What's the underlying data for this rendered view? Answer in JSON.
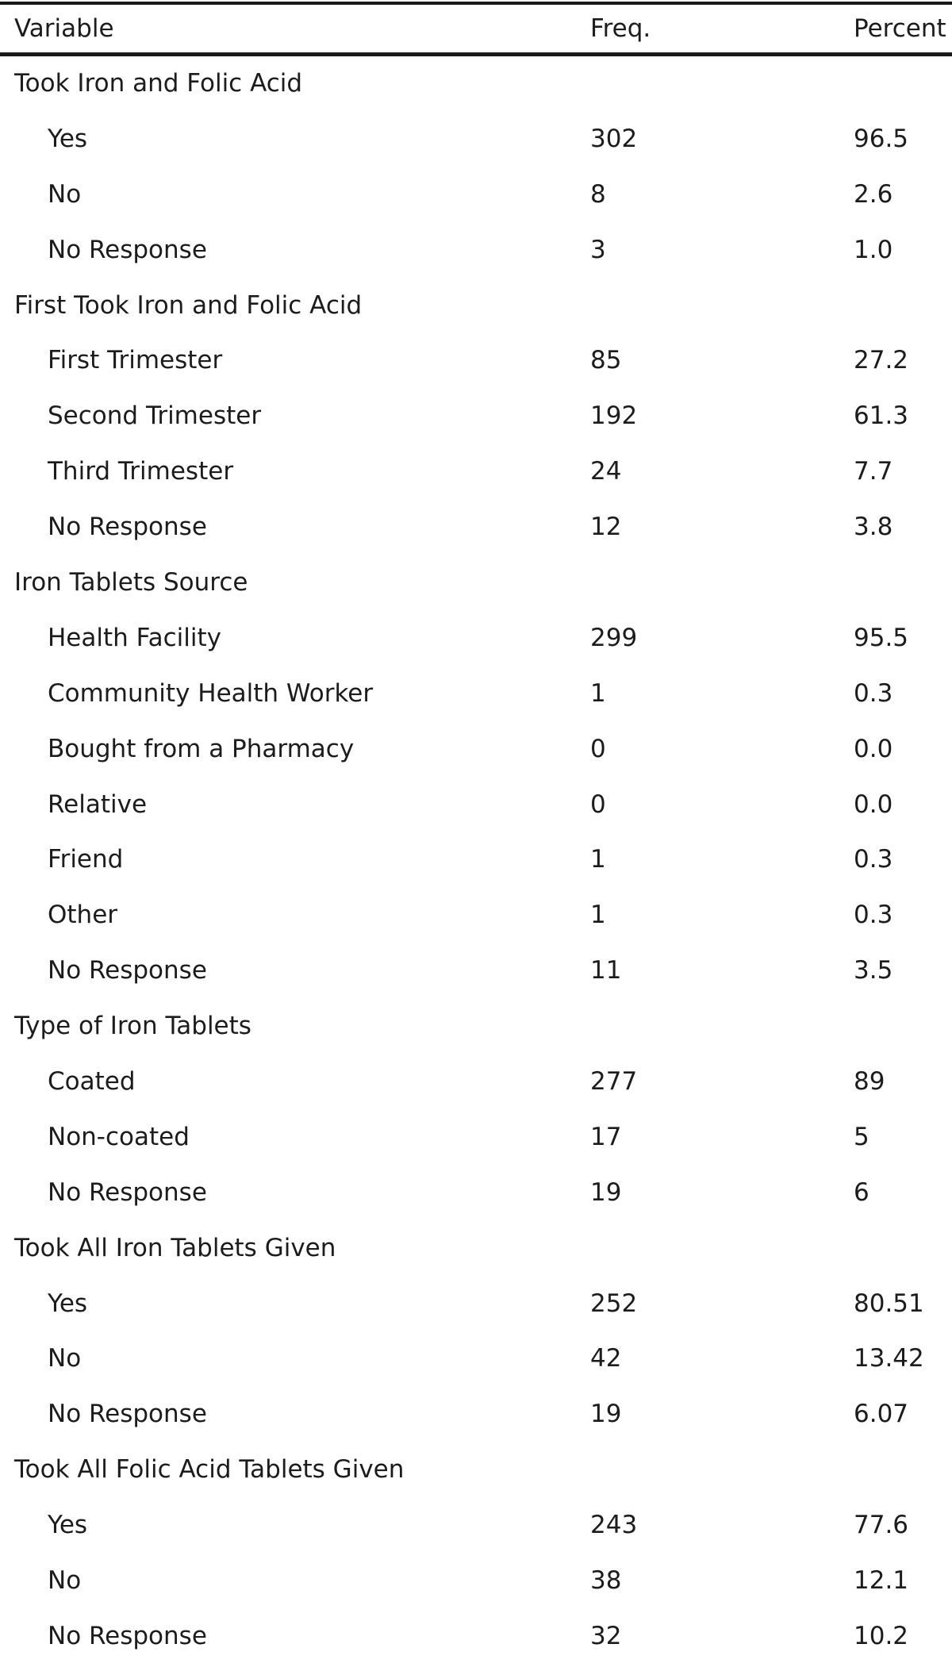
{
  "table": {
    "headers": {
      "variable": "Variable",
      "freq": "Freq.",
      "percent": "Percent"
    },
    "sections": [
      {
        "title": "Took Iron and Folic Acid",
        "rows": [
          {
            "label": "Yes",
            "freq": "302",
            "percent": "96.5"
          },
          {
            "label": "No",
            "freq": "8",
            "percent": "2.6"
          },
          {
            "label": "No Response",
            "freq": "3",
            "percent": "1.0"
          }
        ]
      },
      {
        "title": "First Took Iron and Folic Acid",
        "rows": [
          {
            "label": "First Trimester",
            "freq": "85",
            "percent": "27.2"
          },
          {
            "label": "Second Trimester",
            "freq": "192",
            "percent": "61.3"
          },
          {
            "label": "Third Trimester",
            "freq": "24",
            "percent": "7.7"
          },
          {
            "label": "No Response",
            "freq": "12",
            "percent": "3.8"
          }
        ]
      },
      {
        "title": "Iron Tablets Source",
        "rows": [
          {
            "label": "Health Facility",
            "freq": "299",
            "percent": "95.5"
          },
          {
            "label": "Community Health Worker",
            "freq": "1",
            "percent": "0.3"
          },
          {
            "label": "Bought from a Pharmacy",
            "freq": "0",
            "percent": "0.0"
          },
          {
            "label": "Relative",
            "freq": "0",
            "percent": "0.0"
          },
          {
            "label": "Friend",
            "freq": "1",
            "percent": "0.3"
          },
          {
            "label": "Other",
            "freq": "1",
            "percent": "0.3"
          },
          {
            "label": "No Response",
            "freq": "11",
            "percent": "3.5"
          }
        ]
      },
      {
        "title": "Type of Iron Tablets",
        "rows": [
          {
            "label": "Coated",
            "freq": "277",
            "percent": "89"
          },
          {
            "label": "Non-coated",
            "freq": "17",
            "percent": "5"
          },
          {
            "label": "No Response",
            "freq": "19",
            "percent": "6"
          }
        ]
      },
      {
        "title": "Took All Iron Tablets Given",
        "rows": [
          {
            "label": "Yes",
            "freq": "252",
            "percent": "80.51"
          },
          {
            "label": "No",
            "freq": "42",
            "percent": "13.42"
          },
          {
            "label": "No Response",
            "freq": "19",
            "percent": "6.07"
          }
        ]
      },
      {
        "title": "Took All Folic Acid Tablets Given",
        "rows": [
          {
            "label": "Yes",
            "freq": "243",
            "percent": "77.6"
          },
          {
            "label": "No",
            "freq": "38",
            "percent": "12.1"
          },
          {
            "label": "No Response",
            "freq": "32",
            "percent": "10.2"
          }
        ]
      }
    ]
  }
}
